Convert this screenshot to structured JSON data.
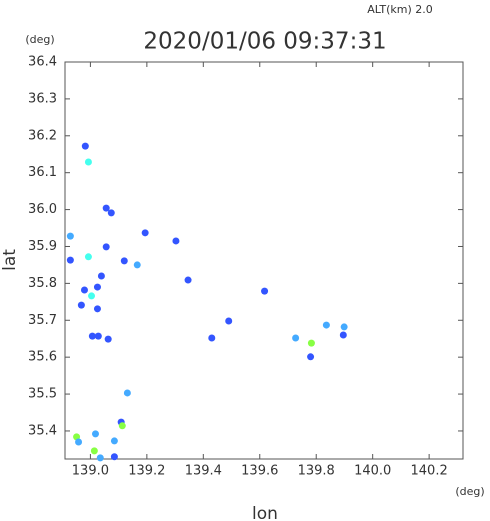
{
  "chart_data": {
    "type": "scatter",
    "title": "2020/01/06 09:37:31",
    "subtitle": "ALT(km) 2.0",
    "x_label": "lon",
    "y_label": "lat",
    "x_unit": "(deg)",
    "y_unit": "(deg)",
    "xlim": [
      138.91,
      140.32
    ],
    "ylim": [
      35.324,
      36.4
    ],
    "xticks": [
      {
        "value": 139.0,
        "label": "139.0"
      },
      139.2,
      139.4,
      139.6,
      139.8,
      {
        "value": 140.0,
        "label": "140.0"
      },
      140.2
    ],
    "yticks": [
      36.4,
      36.3,
      36.2,
      36.1,
      {
        "value": 36.0,
        "label": "36.0"
      },
      35.9,
      35.8,
      35.7,
      35.6,
      35.5,
      35.4
    ],
    "grid": false,
    "x": [
      138.982,
      138.993,
      139.056,
      139.074,
      138.929,
      138.993,
      138.929,
      139.056,
      139.039,
      139.025,
      138.979,
      139.004,
      138.968,
      139.025,
      139.007,
      139.028,
      139.063,
      139.12,
      139.166,
      139.194,
      139.303,
      139.346,
      139.43,
      139.49,
      139.617,
      139.727,
      139.783,
      139.836,
      139.899,
      139.896,
      139.78,
      139.131,
      139.109,
      139.113,
      138.951,
      138.958,
      139.085,
      139.018,
      139.014,
      139.085,
      139.035
    ],
    "y": [
      36.172,
      36.129,
      36.004,
      35.991,
      35.928,
      35.872,
      35.863,
      35.899,
      35.82,
      35.79,
      35.782,
      35.766,
      35.741,
      35.731,
      35.657,
      35.657,
      35.649,
      35.861,
      35.85,
      35.937,
      35.915,
      35.809,
      35.652,
      35.698,
      35.779,
      35.652,
      35.638,
      35.687,
      35.682,
      35.66,
      35.601,
      35.503,
      35.424,
      35.414,
      35.384,
      35.37,
      35.373,
      35.392,
      35.346,
      35.33,
      35.327
    ],
    "colors": [
      "#3355ff",
      "#44ffee",
      "#3355ff",
      "#3355ff",
      "#44aaff",
      "#44ffee",
      "#3355ff",
      "#3355ff",
      "#3355ff",
      "#3355ff",
      "#3355ff",
      "#44ffee",
      "#3355ff",
      "#3355ff",
      "#3355ff",
      "#3355ff",
      "#3355ff",
      "#3355ff",
      "#44aaff",
      "#3355ff",
      "#3355ff",
      "#3355ff",
      "#3355ff",
      "#3355ff",
      "#3355ff",
      "#44aaff",
      "#88ff44",
      "#44aaff",
      "#44aaff",
      "#3355ff",
      "#3355ff",
      "#44aaff",
      "#3355ff",
      "#88ff44",
      "#88ff44",
      "#44aaff",
      "#44aaff",
      "#44aaff",
      "#88ff44",
      "#3355ff",
      "#44aaff"
    ]
  }
}
